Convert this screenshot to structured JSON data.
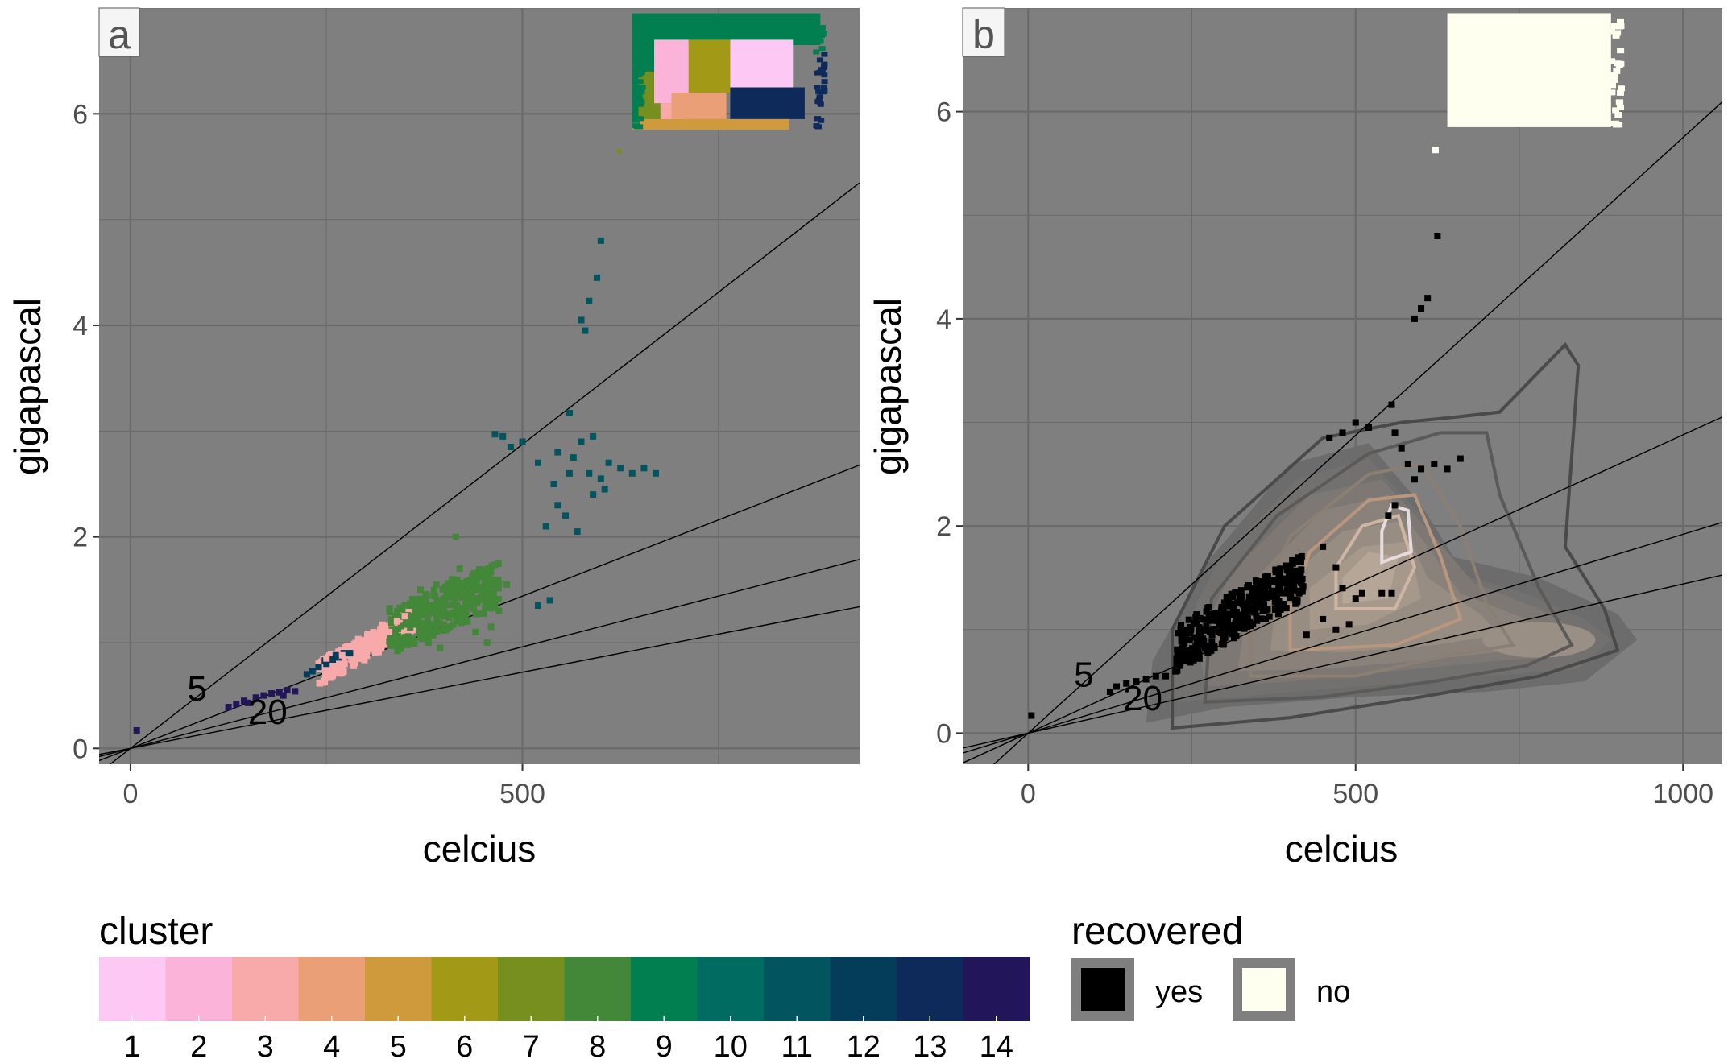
{
  "chart_data": [
    {
      "panel": "a",
      "type": "scatter",
      "xlabel": "celcius",
      "ylabel": "gigapascal",
      "xlim": [
        -40,
        930
      ],
      "ylim": [
        -0.15,
        7.0
      ],
      "xticks": [
        0,
        500
      ],
      "yticks": [
        0,
        2,
        4,
        6
      ],
      "grid": true,
      "reference_lines": [
        {
          "label": "5",
          "slope": 0.00575
        },
        {
          "label": "",
          "slope": 0.00288
        },
        {
          "label": "20",
          "slope": 0.00192
        },
        {
          "label": "",
          "slope": 0.00144
        }
      ],
      "annotations": [
        {
          "text": "5",
          "x": 85,
          "y": 0.45
        },
        {
          "text": "20",
          "x": 175,
          "y": 0.23
        }
      ],
      "clusters": [
        {
          "cluster": 14,
          "points": [
            [
              8,
              0.17
            ],
            [
              125,
              0.39
            ],
            [
              135,
              0.42
            ],
            [
              145,
              0.45
            ],
            [
              150,
              0.43
            ],
            [
              160,
              0.48
            ],
            [
              170,
              0.5
            ],
            [
              180,
              0.52
            ],
            [
              190,
              0.53
            ],
            [
              200,
              0.55
            ],
            [
              210,
              0.54
            ],
            [
              195,
              0.5
            ]
          ]
        },
        {
          "cluster": 12,
          "points": [
            [
              225,
              0.7
            ],
            [
              232,
              0.73
            ],
            [
              240,
              0.77
            ],
            [
              250,
              0.8
            ],
            [
              258,
              0.84
            ],
            [
              265,
              0.86
            ],
            [
              272,
              0.9
            ],
            [
              248,
              0.83
            ],
            [
              262,
              0.88
            ],
            [
              280,
              0.9
            ]
          ]
        },
        {
          "cluster": 3,
          "blob": {
            "x": [
              240,
              360
            ],
            "y": [
              0.8,
              1.35
            ]
          },
          "points": [
            [
              250,
              0.85
            ],
            [
              270,
              0.88
            ],
            [
              290,
              0.95
            ],
            [
              300,
              1.0
            ],
            [
              315,
              1.05
            ],
            [
              330,
              1.1
            ],
            [
              340,
              1.2
            ],
            [
              350,
              1.25
            ],
            [
              355,
              1.32
            ],
            [
              320,
              0.95
            ]
          ]
        },
        {
          "cluster": 8,
          "blob": {
            "x": [
              330,
              470
            ],
            "y": [
              0.9,
              1.65
            ]
          },
          "points": [
            [
              355,
              1.35
            ],
            [
              370,
              1.5
            ],
            [
              390,
              1.55
            ],
            [
              400,
              1.4
            ],
            [
              420,
              1.3
            ],
            [
              430,
              1.2
            ],
            [
              440,
              1.1
            ],
            [
              455,
              1.0
            ],
            [
              470,
              1.3
            ],
            [
              480,
              1.55
            ],
            [
              415,
              2.0
            ],
            [
              420,
              1.7
            ],
            [
              460,
              1.15
            ],
            [
              380,
              1.0
            ],
            [
              395,
              0.95
            ],
            [
              410,
              1.6
            ]
          ]
        },
        {
          "cluster": 11,
          "points": [
            [
              465,
              2.97
            ],
            [
              475,
              2.95
            ],
            [
              485,
              2.85
            ],
            [
              500,
              2.9
            ],
            [
              520,
              2.7
            ],
            [
              540,
              2.5
            ],
            [
              545,
              2.3
            ],
            [
              530,
              2.1
            ],
            [
              560,
              2.6
            ],
            [
              565,
              2.75
            ],
            [
              575,
              2.9
            ],
            [
              585,
              2.6
            ],
            [
              590,
              2.4
            ],
            [
              600,
              2.55
            ],
            [
              610,
              2.7
            ],
            [
              625,
              2.65
            ],
            [
              640,
              2.6
            ],
            [
              655,
              2.65
            ],
            [
              670,
              2.6
            ],
            [
              560,
              3.17
            ],
            [
              575,
              4.05
            ],
            [
              585,
              4.23
            ],
            [
              595,
              4.45
            ],
            [
              600,
              4.8
            ],
            [
              580,
              3.95
            ],
            [
              555,
              2.2
            ],
            [
              570,
              2.05
            ],
            [
              545,
              2.8
            ],
            [
              590,
              2.95
            ],
            [
              605,
              2.45
            ],
            [
              535,
              1.4
            ],
            [
              520,
              1.35
            ]
          ]
        }
      ],
      "top_region": {
        "x": [
          640,
          880
        ],
        "y": [
          5.85,
          6.95
        ],
        "patches": [
          {
            "cluster": 9,
            "x": [
              640,
              880
            ],
            "y": [
              6.65,
              6.95
            ]
          },
          {
            "cluster": 9,
            "x": [
              640,
              668
            ],
            "y": [
              5.9,
              6.7
            ]
          },
          {
            "cluster": 7,
            "x": [
              648,
              676
            ],
            "y": [
              5.92,
              6.4
            ]
          },
          {
            "cluster": 2,
            "x": [
              668,
              712
            ],
            "y": [
              6.1,
              6.7
            ]
          },
          {
            "cluster": 6,
            "x": [
              712,
              765
            ],
            "y": [
              6.2,
              6.7
            ]
          },
          {
            "cluster": 1,
            "x": [
              765,
              845
            ],
            "y": [
              6.25,
              6.7
            ]
          },
          {
            "cluster": 3,
            "x": [
              676,
              712
            ],
            "y": [
              5.92,
              6.1
            ]
          },
          {
            "cluster": 4,
            "x": [
              690,
              760
            ],
            "y": [
              5.95,
              6.2
            ]
          },
          {
            "cluster": 13,
            "x": [
              765,
              860
            ],
            "y": [
              5.95,
              6.25
            ]
          },
          {
            "cluster": 5,
            "x": [
              640,
              690
            ],
            "y": [
              5.85,
              5.95
            ]
          },
          {
            "cluster": 5,
            "x": [
              690,
              840
            ],
            "y": [
              5.85,
              5.95
            ]
          }
        ]
      }
    },
    {
      "panel": "b",
      "type": "scatter",
      "xlabel": "celcius",
      "ylabel": "gigapascal",
      "xlim": [
        -100,
        1060
      ],
      "ylim": [
        -0.3,
        7.0
      ],
      "xticks": [
        0,
        500,
        1000
      ],
      "yticks": [
        0,
        2,
        4,
        6
      ],
      "grid": true,
      "reference_lines": [
        {
          "label": "5",
          "slope": 0.00575
        },
        {
          "label": "",
          "slope": 0.00288
        },
        {
          "label": "20",
          "slope": 0.00192
        },
        {
          "label": "",
          "slope": 0.00144
        }
      ],
      "annotations": [
        {
          "text": "5",
          "x": 85,
          "y": 0.45
        },
        {
          "text": "20",
          "x": 175,
          "y": 0.22
        }
      ],
      "recovered_yes_points": [
        [
          5,
          0.17
        ],
        [
          125,
          0.4
        ],
        [
          135,
          0.45
        ],
        [
          150,
          0.48
        ],
        [
          165,
          0.5
        ],
        [
          180,
          0.52
        ],
        [
          195,
          0.55
        ],
        [
          210,
          0.55
        ],
        [
          560,
          2.9
        ],
        [
          570,
          2.75
        ],
        [
          580,
          2.6
        ],
        [
          590,
          2.45
        ],
        [
          600,
          2.55
        ],
        [
          620,
          2.6
        ],
        [
          640,
          2.55
        ],
        [
          660,
          2.65
        ],
        [
          520,
          2.95
        ],
        [
          500,
          3.0
        ],
        [
          480,
          2.9
        ],
        [
          460,
          2.85
        ],
        [
          555,
          3.17
        ],
        [
          590,
          4.0
        ],
        [
          600,
          4.1
        ],
        [
          610,
          4.2
        ],
        [
          625,
          4.8
        ],
        [
          560,
          2.2
        ],
        [
          550,
          2.1
        ],
        [
          450,
          1.8
        ],
        [
          470,
          1.6
        ],
        [
          480,
          1.4
        ],
        [
          500,
          1.3
        ],
        [
          510,
          1.35
        ],
        [
          540,
          1.35
        ],
        [
          555,
          1.35
        ],
        [
          450,
          1.1
        ],
        [
          470,
          1.0
        ],
        [
          490,
          1.05
        ],
        [
          425,
          0.95
        ]
      ],
      "recovered_yes_blob": {
        "x": [
          225,
          420
        ],
        "y": [
          0.75,
          1.6
        ]
      },
      "recovered_no_region": {
        "x": [
          640,
          890
        ],
        "y": [
          5.85,
          6.95
        ]
      },
      "density_contours": true
    }
  ],
  "panel_labels": {
    "a": "a",
    "b": "b"
  },
  "annotation_labels": {
    "five": "5",
    "twenty": "20"
  },
  "legend_cluster": {
    "title": "cluster",
    "labels": [
      "1",
      "2",
      "3",
      "4",
      "5",
      "6",
      "7",
      "8",
      "9",
      "10",
      "11",
      "12",
      "13",
      "14"
    ],
    "colors": [
      "#fdc8f3",
      "#fbb3d9",
      "#f8aaaa",
      "#eb9f76",
      "#ce9a3c",
      "#a29a16",
      "#768f1e",
      "#438738",
      "#017f50",
      "#006b60",
      "#02555e",
      "#033d5a",
      "#0e2a5a",
      "#22155a"
    ]
  },
  "legend_recovered": {
    "title": "recovered",
    "items": [
      {
        "label": "yes",
        "color": "#000000"
      },
      {
        "label": "no",
        "color": "#fffff0"
      }
    ]
  },
  "colors": {
    "panel_bg": "#7f7f7f",
    "grid": "#6a6a6a",
    "frame": "#555555"
  }
}
